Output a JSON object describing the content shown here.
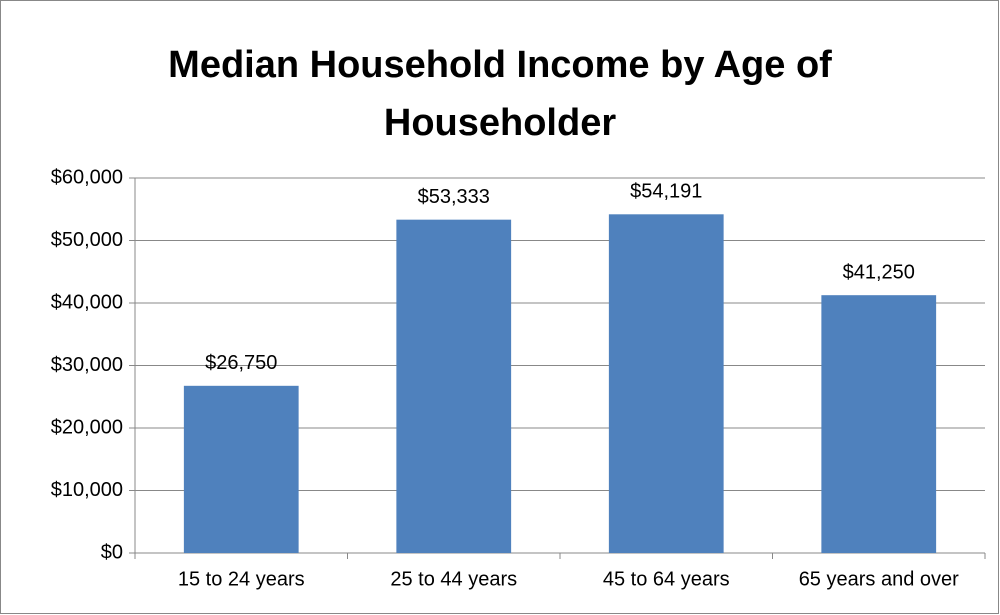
{
  "chart_data": {
    "type": "bar",
    "title": "Median Household Income by Age of Householder",
    "categories": [
      "15 to 24 years",
      "25 to 44 years",
      "45 to 64 years",
      "65 years and over"
    ],
    "values": [
      26750,
      53333,
      54191,
      41250
    ],
    "value_labels": [
      "$26,750",
      "$53,333",
      "$54,191",
      "$41,250"
    ],
    "color": "#4f81bd",
    "ylim": [
      0,
      60000
    ],
    "yticks": [
      {
        "value": 0,
        "label": "$0"
      },
      {
        "value": 10000,
        "label": "$10,000"
      },
      {
        "value": 20000,
        "label": "$20,000"
      },
      {
        "value": 30000,
        "label": "$30,000"
      },
      {
        "value": 40000,
        "label": "$40,000"
      },
      {
        "value": 50000,
        "label": "$50,000"
      },
      {
        "value": 60000,
        "label": "$60,000"
      }
    ],
    "grid": true
  }
}
